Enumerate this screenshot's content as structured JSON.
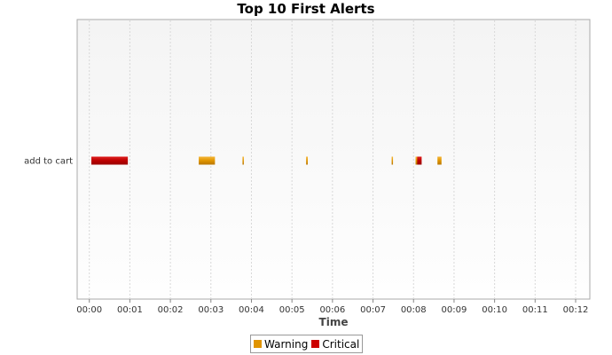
{
  "chart_data": {
    "type": "bar",
    "orientation": "horizontal-timeline",
    "title": "Top 10 First Alerts",
    "xlabel": "Time",
    "ylabel": "",
    "categories": [
      "add to cart"
    ],
    "x_range_minutes": [
      -0.3,
      12.35
    ],
    "x_ticks": [
      "00:00",
      "00:01",
      "00:02",
      "00:03",
      "00:04",
      "00:05",
      "00:06",
      "00:07",
      "00:08",
      "00:09",
      "00:10",
      "00:11",
      "00:12"
    ],
    "grid": true,
    "legend_position": "bottom-center",
    "series": [
      {
        "name": "Warning",
        "color": "#e09400",
        "intervals": [
          {
            "category": "add to cart",
            "start": "00:02.7",
            "end": "00:03.1"
          },
          {
            "category": "add to cart",
            "start": "00:03.78",
            "end": "00:03.81"
          },
          {
            "category": "add to cart",
            "start": "00:05.35",
            "end": "00:05.39"
          },
          {
            "category": "add to cart",
            "start": "00:07.46",
            "end": "00:07.49"
          },
          {
            "category": "add to cart",
            "start": "00:08.05",
            "end": "00:08.11"
          },
          {
            "category": "add to cart",
            "start": "00:08.59",
            "end": "00:08.69"
          }
        ]
      },
      {
        "name": "Critical",
        "color": "#cc0000",
        "intervals": [
          {
            "category": "add to cart",
            "start": "00:00.05",
            "end": "00:00.95"
          },
          {
            "category": "add to cart",
            "start": "00:08.09",
            "end": "00:08.2"
          }
        ]
      }
    ]
  }
}
